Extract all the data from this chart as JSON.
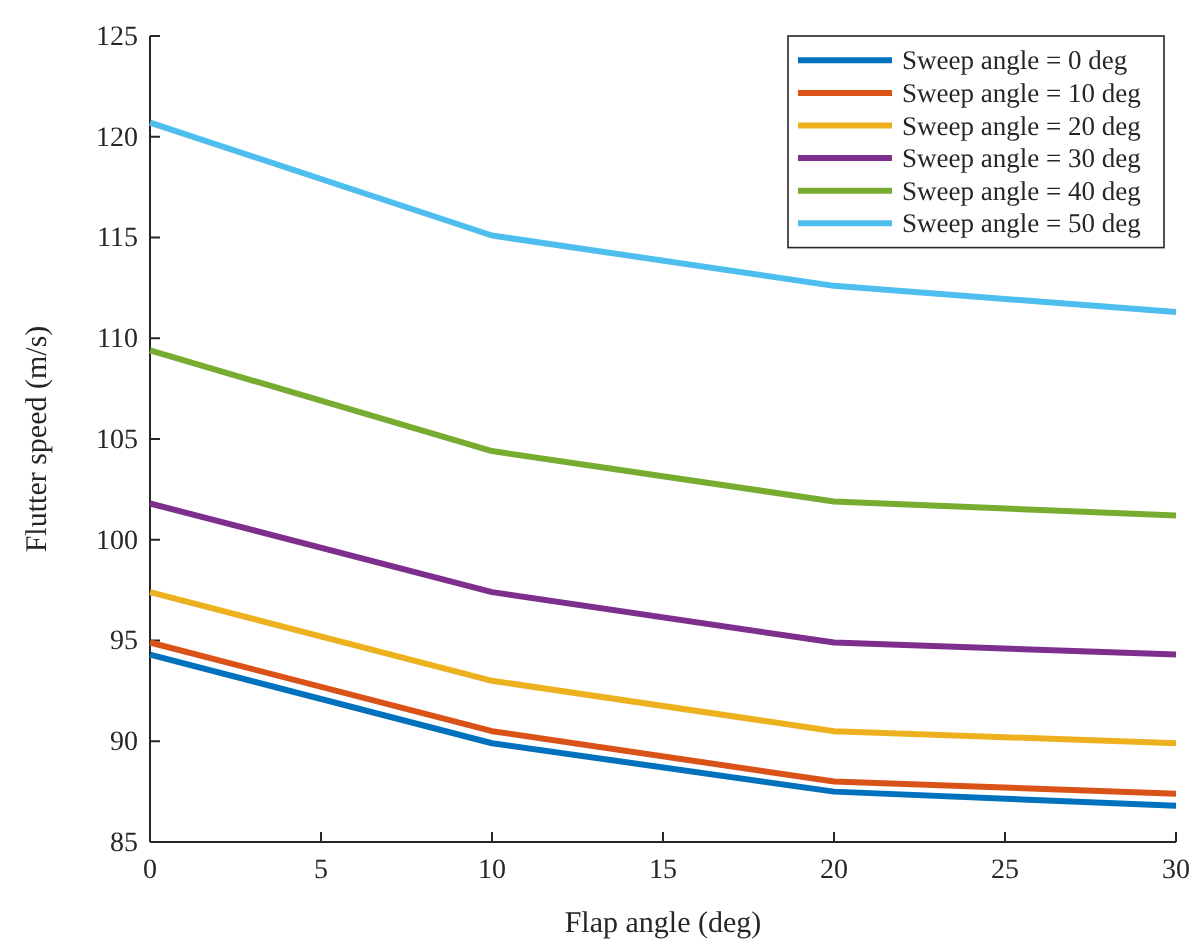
{
  "chart_data": {
    "type": "line",
    "xlabel": "Flap angle (deg)",
    "ylabel": "Flutter speed (m/s)",
    "x": [
      0,
      10,
      20,
      30
    ],
    "xlim": [
      0,
      30
    ],
    "xticks": [
      0,
      5,
      10,
      15,
      20,
      25,
      30
    ],
    "ylim": [
      85,
      125
    ],
    "yticks": [
      85,
      90,
      95,
      100,
      105,
      110,
      115,
      120,
      125
    ],
    "grid": false,
    "legend": "top right",
    "marker": "none",
    "line_style": "solid",
    "series": [
      {
        "name": "Sweep angle = 0 deg",
        "color": "#0072bd",
        "values": [
          94.3,
          89.9,
          87.5,
          86.8
        ]
      },
      {
        "name": "Sweep angle = 10 deg",
        "color": "#d95319",
        "values": [
          94.9,
          90.5,
          88.0,
          87.4
        ]
      },
      {
        "name": "Sweep angle = 20 deg",
        "color": "#edb120",
        "values": [
          97.4,
          93.0,
          90.5,
          89.9
        ]
      },
      {
        "name": "Sweep angle = 30 deg",
        "color": "#7e2f8e",
        "values": [
          101.8,
          97.4,
          94.9,
          94.3
        ]
      },
      {
        "name": "Sweep angle = 40 deg",
        "color": "#77ac30",
        "values": [
          109.4,
          104.4,
          101.9,
          101.2
        ]
      },
      {
        "name": "Sweep angle = 50 deg",
        "color": "#4dbeee",
        "values": [
          120.7,
          115.1,
          112.6,
          111.3
        ]
      }
    ]
  }
}
